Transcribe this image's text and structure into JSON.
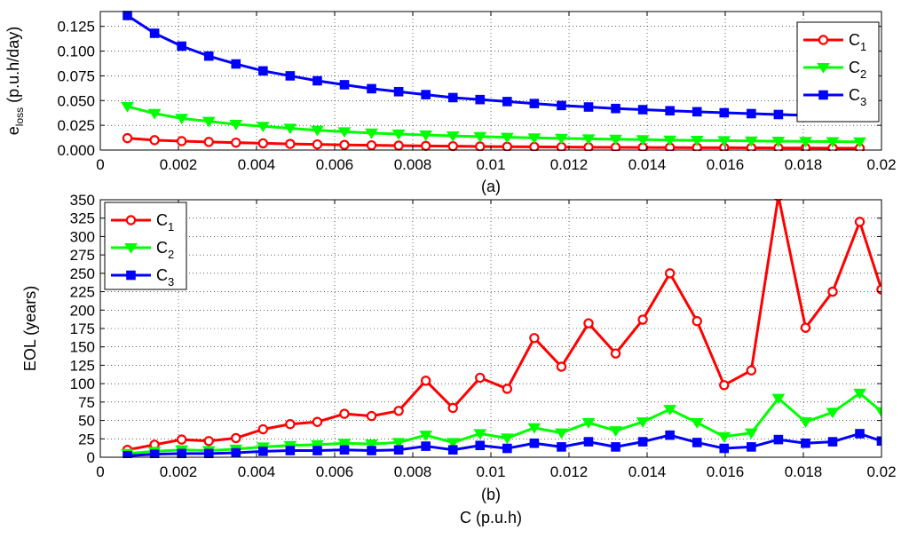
{
  "chart_data": [
    {
      "type": "line",
      "panel_label": "(a)",
      "ylabel_main": "e",
      "ylabel_sub": "loss",
      "ylabel_rest": " (p.u.h/day)",
      "xlim": [
        0,
        0.02
      ],
      "ylim": [
        0,
        0.14
      ],
      "xticks": [
        0,
        0.002,
        0.004,
        0.006,
        0.008,
        0.01,
        0.012,
        0.014,
        0.016,
        0.018,
        0.02
      ],
      "xtick_labels": [
        "0",
        "0.002",
        "0.004",
        "0.006",
        "0.008",
        "0.01",
        "0.012",
        "0.014",
        "0.016",
        "0.018",
        "0.02"
      ],
      "yticks": [
        0,
        0.025,
        0.05,
        0.075,
        0.1,
        0.125
      ],
      "ytick_labels": [
        "0.000",
        "0.025",
        "0.050",
        "0.075",
        "0.100",
        "0.125"
      ],
      "grid": true,
      "legend_position": "top-right",
      "x": [
        0.000694,
        0.001389,
        0.002083,
        0.002778,
        0.003472,
        0.004167,
        0.004861,
        0.005556,
        0.00625,
        0.006944,
        0.007639,
        0.008333,
        0.009028,
        0.009722,
        0.010417,
        0.011111,
        0.011806,
        0.0125,
        0.013194,
        0.013889,
        0.014583,
        0.015278,
        0.015972,
        0.016667,
        0.017361,
        0.018056,
        0.01875,
        0.019444
      ],
      "series": [
        {
          "name": "C",
          "sub": "1",
          "color": "#ff0000",
          "marker": "circle",
          "values": [
            0.012,
            0.01,
            0.009,
            0.0082,
            0.0075,
            0.0068,
            0.0062,
            0.0057,
            0.0052,
            0.0048,
            0.0045,
            0.0042,
            0.0039,
            0.0036,
            0.0034,
            0.0032,
            0.003,
            0.0028,
            0.0027,
            0.0026,
            0.0025,
            0.0024,
            0.0023,
            0.0022,
            0.0021,
            0.002,
            0.0019,
            0.0018
          ]
        },
        {
          "name": "C",
          "sub": "2",
          "color": "#00ff00",
          "marker": "triangle-down",
          "values": [
            0.044,
            0.037,
            0.032,
            0.029,
            0.026,
            0.024,
            0.022,
            0.02,
            0.0185,
            0.0172,
            0.0162,
            0.0152,
            0.0143,
            0.0136,
            0.0129,
            0.0123,
            0.0118,
            0.0113,
            0.0109,
            0.0105,
            0.0101,
            0.0098,
            0.0095,
            0.0092,
            0.0089,
            0.0087,
            0.0085,
            0.0083
          ]
        },
        {
          "name": "C",
          "sub": "3",
          "color": "#0000ff",
          "marker": "square",
          "values": [
            0.136,
            0.118,
            0.105,
            0.095,
            0.087,
            0.08,
            0.075,
            0.07,
            0.066,
            0.062,
            0.059,
            0.056,
            0.053,
            0.051,
            0.049,
            0.047,
            0.045,
            0.0435,
            0.042,
            0.0408,
            0.0397,
            0.0387,
            0.0377,
            0.0368,
            0.0359,
            0.0351,
            0.0343,
            0.0336
          ]
        }
      ]
    },
    {
      "type": "line",
      "panel_label": "(b)",
      "ylabel": "EOL (years)",
      "xlabel": "C (p.u.h)",
      "xlim": [
        0,
        0.02
      ],
      "ylim": [
        0,
        350
      ],
      "xticks": [
        0,
        0.002,
        0.004,
        0.006,
        0.008,
        0.01,
        0.012,
        0.014,
        0.016,
        0.018,
        0.02
      ],
      "xtick_labels": [
        "0",
        "0.002",
        "0.004",
        "0.006",
        "0.008",
        "0.01",
        "0.012",
        "0.014",
        "0.016",
        "0.018",
        "0.02"
      ],
      "yticks": [
        0,
        25,
        50,
        75,
        100,
        125,
        150,
        175,
        200,
        225,
        250,
        275,
        300,
        325,
        350
      ],
      "ytick_labels": [
        "0",
        "25",
        "50",
        "75",
        "100",
        "125",
        "150",
        "175",
        "200",
        "225",
        "250",
        "275",
        "300",
        "325",
        "350"
      ],
      "grid": true,
      "legend_position": "top-left",
      "x": [
        0.000694,
        0.001389,
        0.002083,
        0.002778,
        0.003472,
        0.004167,
        0.004861,
        0.005556,
        0.00625,
        0.006944,
        0.007639,
        0.008333,
        0.009028,
        0.009722,
        0.010417,
        0.011111,
        0.011806,
        0.0125,
        0.013194,
        0.013889,
        0.014583,
        0.015278,
        0.015972,
        0.016667,
        0.017361,
        0.018056,
        0.01875,
        0.019444,
        0.02
      ],
      "series": [
        {
          "name": "C",
          "sub": "1",
          "color": "#ff0000",
          "marker": "circle",
          "values": [
            10,
            17,
            24,
            22,
            26,
            38,
            45,
            48,
            59,
            56,
            63,
            104,
            67,
            108,
            93,
            162,
            123,
            182,
            141,
            187,
            250,
            185,
            98,
            118,
            355,
            176,
            225,
            320,
            228
          ]
        },
        {
          "name": "C",
          "sub": "2",
          "color": "#00ff00",
          "marker": "triangle-down",
          "values": [
            5,
            8,
            10,
            9,
            11,
            14,
            16,
            17,
            19,
            18,
            20,
            30,
            20,
            32,
            26,
            40,
            33,
            47,
            36,
            48,
            65,
            47,
            28,
            33,
            80,
            48,
            61,
            87,
            62
          ]
        },
        {
          "name": "C",
          "sub": "3",
          "color": "#0000ff",
          "marker": "square",
          "values": [
            2,
            4,
            5,
            5,
            6,
            8,
            9,
            9,
            10,
            9,
            10,
            15,
            10,
            16,
            12,
            19,
            14,
            21,
            14,
            21,
            30,
            20,
            12,
            14,
            24,
            19,
            21,
            32,
            22
          ]
        }
      ]
    }
  ]
}
